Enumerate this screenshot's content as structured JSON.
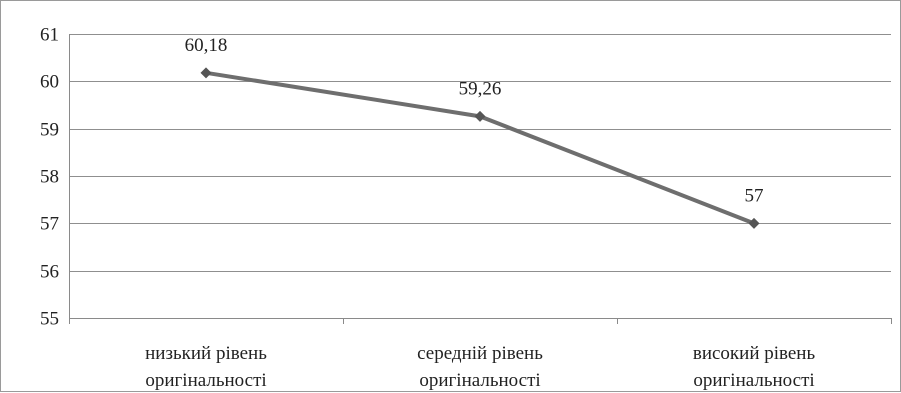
{
  "chart_data": {
    "type": "line",
    "title": "",
    "xlabel": "",
    "ylabel": "",
    "categories": [
      [
        "низький рівень",
        "оригінальності"
      ],
      [
        "середній рівень",
        "оригінальності"
      ],
      [
        "високий рівень",
        "оригінальності"
      ]
    ],
    "series": [
      {
        "values": [
          60.18,
          59.26,
          57
        ],
        "data_labels": [
          "60,18",
          "59,26",
          "57"
        ],
        "color": "#6e6e6e",
        "marker": "diamond"
      }
    ],
    "ylim": [
      55,
      61
    ],
    "yticks": [
      55,
      56,
      57,
      58,
      59,
      60,
      61
    ],
    "grid": true,
    "legend": "none"
  }
}
